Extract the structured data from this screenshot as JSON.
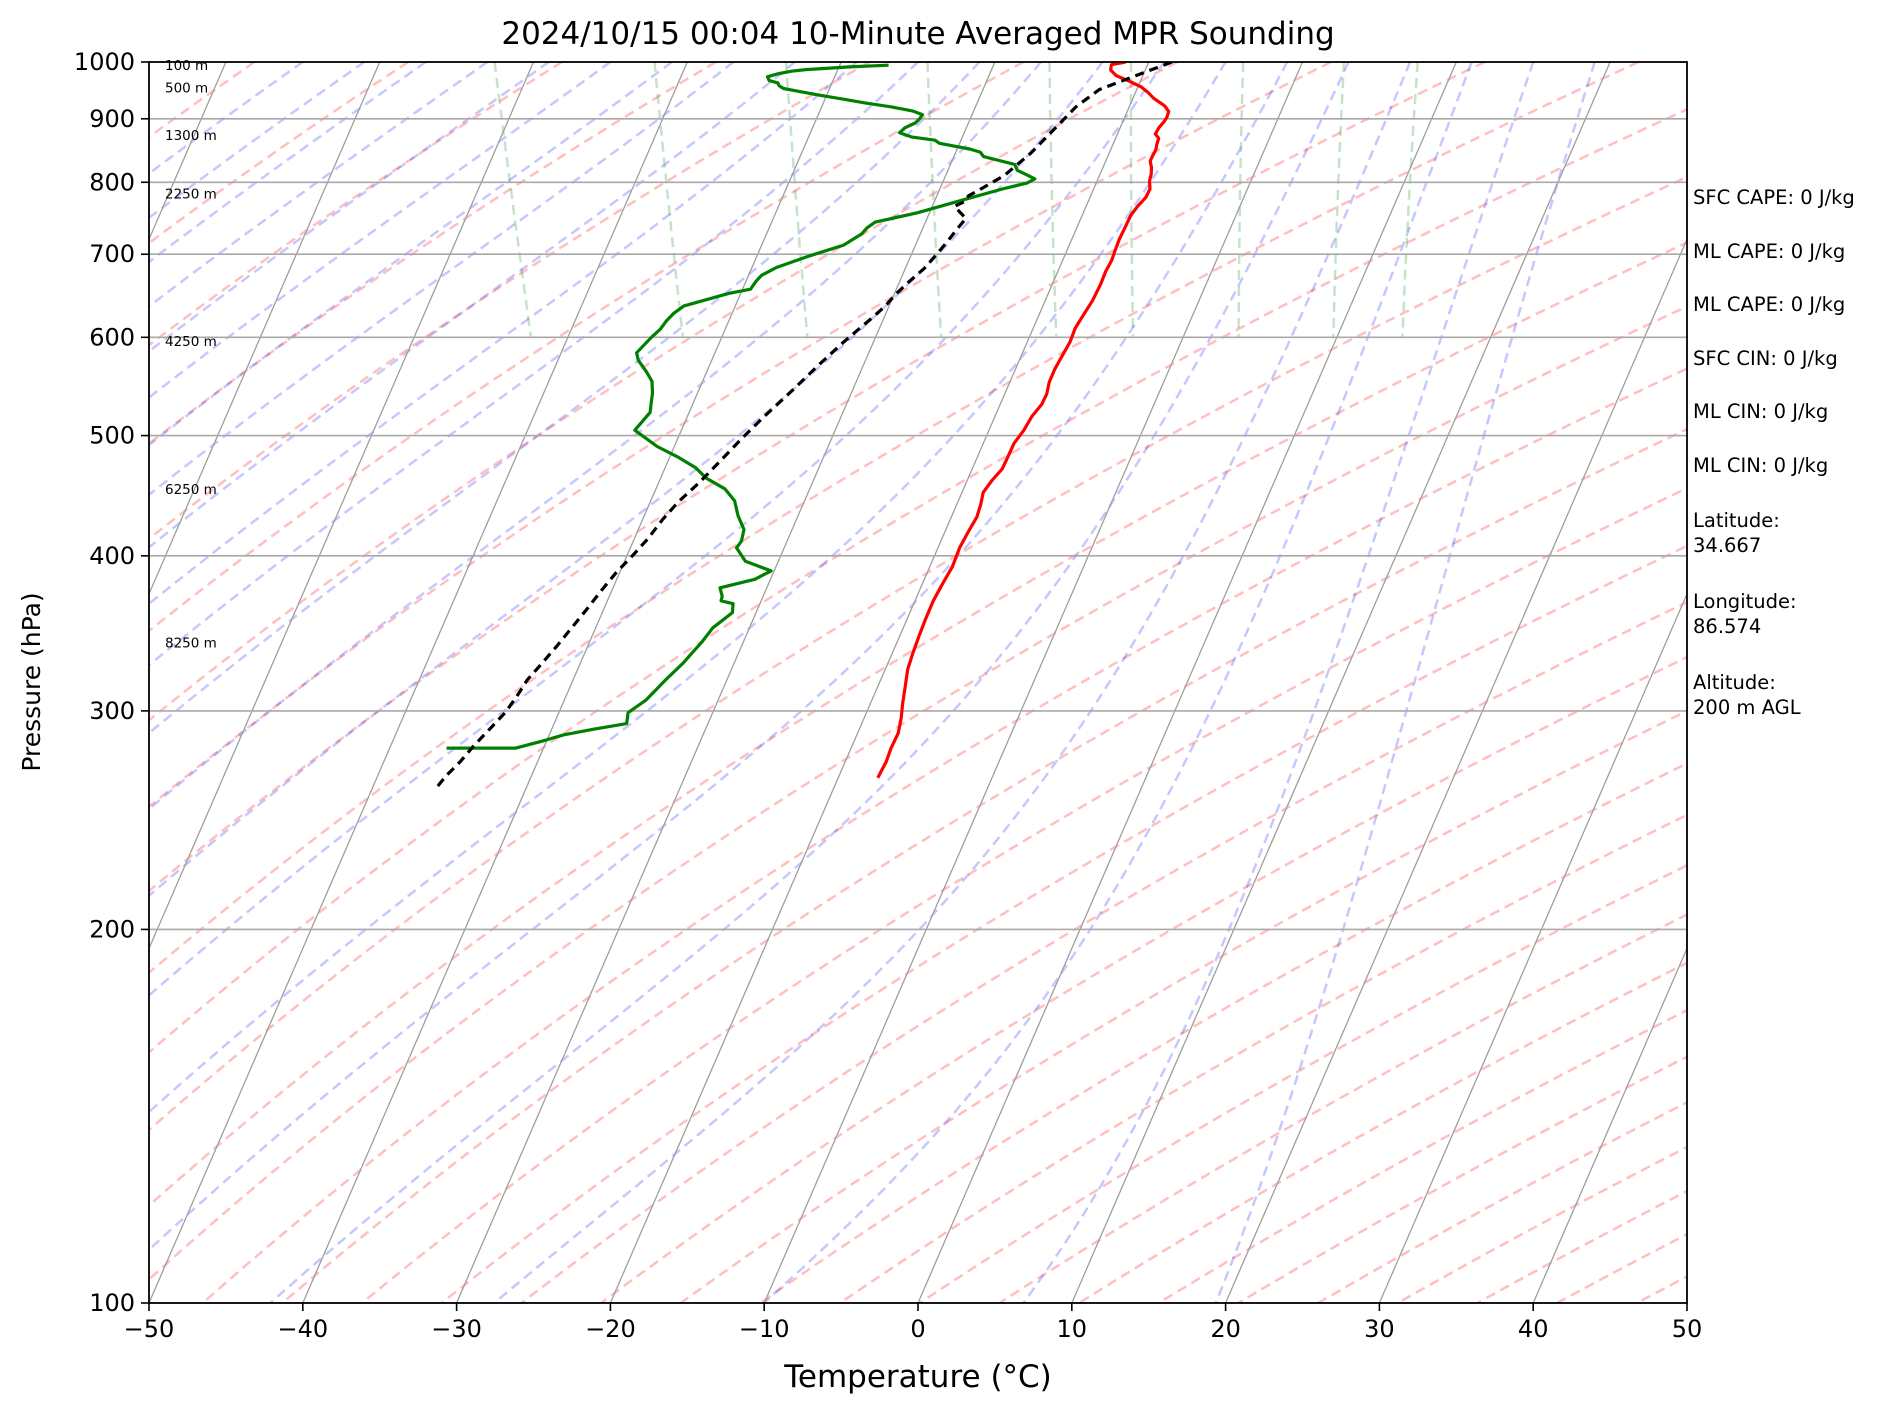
{
  "chart_data": {
    "type": "line",
    "title": "2024/10/15 00:04 10-Minute Averaged MPR Sounding",
    "xlabel": "Temperature (°C)",
    "ylabel": "Pressure (hPa)",
    "xlim": [
      -50,
      50
    ],
    "ylim": [
      1000,
      100
    ],
    "y_scale": "log",
    "x_ticks": [
      "−50",
      "−40",
      "−30",
      "−20",
      "−10",
      "0",
      "10",
      "20",
      "30",
      "40",
      "50"
    ],
    "y_ticks": [
      "100",
      "200",
      "300",
      "400",
      "500",
      "600",
      "700",
      "800",
      "900",
      "1000"
    ],
    "height_labels": [
      {
        "label": "8250 m",
        "p": 340
      },
      {
        "label": "6250 m",
        "p": 452
      },
      {
        "label": "4250 m",
        "p": 595
      },
      {
        "label": "2250 m",
        "p": 782
      },
      {
        "label": "1300 m",
        "p": 872
      },
      {
        "label": "500 m",
        "p": 952
      },
      {
        "label": "100 m",
        "p": 993
      }
    ],
    "series": [
      {
        "color": "#ff0000",
        "points": [
          [
            13.5,
            1000
          ],
          [
            12.5,
            995
          ],
          [
            12.3,
            985
          ],
          [
            12.5,
            975
          ],
          [
            13.2,
            965
          ],
          [
            13.8,
            955
          ],
          [
            14.1,
            945
          ],
          [
            14.3,
            935
          ],
          [
            14.8,
            922
          ],
          [
            14.9,
            912
          ],
          [
            14.6,
            902
          ],
          [
            14.3,
            895
          ],
          [
            13.8,
            885
          ],
          [
            13.4,
            875
          ],
          [
            13.5,
            868
          ],
          [
            13.2,
            858
          ],
          [
            13.0,
            850
          ],
          [
            12.6,
            840
          ],
          [
            12.3,
            832
          ],
          [
            12.2,
            822
          ],
          [
            12.0,
            812
          ],
          [
            11.7,
            802
          ],
          [
            11.5,
            790
          ],
          [
            11.0,
            778
          ],
          [
            10.2,
            765
          ],
          [
            9.5,
            752
          ],
          [
            8.9,
            738
          ],
          [
            8.1,
            720
          ],
          [
            7.5,
            705
          ],
          [
            7.0,
            692
          ],
          [
            6.3,
            678
          ],
          [
            5.6,
            662
          ],
          [
            4.6,
            642
          ],
          [
            3.6,
            625
          ],
          [
            2.7,
            610
          ],
          [
            2.0,
            595
          ],
          [
            1.1,
            580
          ],
          [
            0.2,
            565
          ],
          [
            -0.5,
            552
          ],
          [
            -1.0,
            540
          ],
          [
            -1.6,
            530
          ],
          [
            -2.6,
            518
          ],
          [
            -3.5,
            505
          ],
          [
            -4.5,
            493
          ],
          [
            -5.2,
            482
          ],
          [
            -6.0,
            470
          ],
          [
            -7.0,
            460
          ],
          [
            -7.9,
            450
          ],
          [
            -8.4,
            440
          ],
          [
            -9.0,
            430
          ],
          [
            -10.0,
            418
          ],
          [
            -11.0,
            406
          ],
          [
            -12.0,
            392
          ],
          [
            -13.1,
            380
          ],
          [
            -14.2,
            368
          ],
          [
            -15.2,
            356
          ],
          [
            -16.1,
            345
          ],
          [
            -17.0,
            334
          ],
          [
            -17.8,
            324
          ],
          [
            -18.5,
            313
          ],
          [
            -19.1,
            304
          ],
          [
            -19.6,
            296
          ],
          [
            -20.2,
            288
          ],
          [
            -21.1,
            280
          ],
          [
            -21.8,
            273
          ],
          [
            -22.8,
            265
          ]
        ]
      },
      {
        "color": "#008000",
        "points": [
          [
            -2.0,
            994
          ],
          [
            -4.6,
            991
          ],
          [
            -7.5,
            986
          ],
          [
            -8.5,
            983
          ],
          [
            -9.5,
            978
          ],
          [
            -10.2,
            973
          ],
          [
            -10.2,
            966
          ],
          [
            -9.7,
            962
          ],
          [
            -9.7,
            957
          ],
          [
            -9.5,
            952
          ],
          [
            -8.6,
            947
          ],
          [
            -7.3,
            940
          ],
          [
            -5.8,
            933
          ],
          [
            -4.6,
            927
          ],
          [
            -3.0,
            920
          ],
          [
            -1.7,
            913
          ],
          [
            -1.2,
            907
          ],
          [
            -1.5,
            900
          ],
          [
            -1.9,
            893
          ],
          [
            -2.7,
            885
          ],
          [
            -3.2,
            877
          ],
          [
            -2.5,
            870
          ],
          [
            -1.1,
            865
          ],
          [
            -0.9,
            860
          ],
          [
            0.9,
            851
          ],
          [
            1.5,
            846
          ],
          [
            1.6,
            839
          ],
          [
            2.5,
            833
          ],
          [
            3.4,
            827
          ],
          [
            3.4,
            818
          ],
          [
            3.9,
            811
          ],
          [
            4.3,
            805
          ],
          [
            3.7,
            799
          ],
          [
            1.9,
            790
          ],
          [
            -1.0,
            774
          ],
          [
            -4.3,
            756
          ],
          [
            -7.3,
            743
          ],
          [
            -8.0,
            735
          ],
          [
            -8.5,
            727
          ],
          [
            -10.0,
            712
          ],
          [
            -12.5,
            698
          ],
          [
            -15.0,
            683
          ],
          [
            -16.2,
            673
          ],
          [
            -16.7,
            666
          ],
          [
            -17.3,
            656
          ],
          [
            -18.8,
            651
          ],
          [
            -22.1,
            636
          ],
          [
            -23.0,
            627
          ],
          [
            -23.7,
            618
          ],
          [
            -24.3,
            609
          ],
          [
            -25.1,
            600
          ],
          [
            -26.5,
            583
          ],
          [
            -26.6,
            575
          ],
          [
            -26.4,
            563
          ],
          [
            -26.3,
            553
          ],
          [
            -26.6,
            541
          ],
          [
            -26.9,
            533
          ],
          [
            -27.3,
            522
          ],
          [
            -28.8,
            505
          ],
          [
            -27.8,
            490
          ],
          [
            -26.7,
            480
          ],
          [
            -25.9,
            471
          ],
          [
            -25.5,
            462
          ],
          [
            -24.6,
            453
          ],
          [
            -24.3,
            443
          ],
          [
            -24.5,
            431
          ],
          [
            -24.5,
            420
          ],
          [
            -25.0,
            411
          ],
          [
            -25.5,
            406
          ],
          [
            -25.3,
            396
          ],
          [
            -23.9,
            389
          ],
          [
            -25.2,
            383
          ],
          [
            -27.7,
            377
          ],
          [
            -27.8,
            371
          ],
          [
            -28.0,
            368
          ],
          [
            -27.3,
            366
          ],
          [
            -27.6,
            360
          ],
          [
            -29.3,
            350
          ],
          [
            -30.4,
            341
          ],
          [
            -31.5,
            333
          ],
          [
            -32.2,
            328
          ],
          [
            -33.8,
            318
          ],
          [
            -35.7,
            306
          ],
          [
            -37.2,
            299
          ],
          [
            -37.6,
            293
          ],
          [
            -39.9,
            290
          ],
          [
            -42.0,
            287
          ],
          [
            -43.4,
            284
          ],
          [
            -45.5,
            280
          ],
          [
            -50.0,
            280
          ]
        ]
      },
      {
        "color": "#000000",
        "dashed": true,
        "points": [
          [
            16.5,
            1000
          ],
          [
            11.0,
            950
          ],
          [
            9.0,
            920
          ],
          [
            6.8,
            880
          ],
          [
            4.8,
            845
          ],
          [
            2.4,
            810
          ],
          [
            0.5,
            790
          ],
          [
            -0.5,
            780
          ],
          [
            -0.9,
            772
          ],
          [
            -1.7,
            765
          ],
          [
            -1.3,
            748
          ],
          [
            -2.2,
            733
          ],
          [
            -3.2,
            716
          ],
          [
            -4.2,
            700
          ],
          [
            -5.4,
            682
          ],
          [
            -6.8,
            665
          ],
          [
            -8.0,
            650
          ],
          [
            -9.0,
            636
          ],
          [
            -10.2,
            622
          ],
          [
            -11.5,
            608
          ],
          [
            -12.8,
            594
          ],
          [
            -15.0,
            570
          ],
          [
            -17.5,
            543
          ],
          [
            -20.0,
            518
          ],
          [
            -22.0,
            498
          ],
          [
            -24.0,
            478
          ],
          [
            -26.0,
            459
          ],
          [
            -28.0,
            442
          ],
          [
            -29.5,
            428
          ],
          [
            -31.0,
            413
          ],
          [
            -32.5,
            400
          ],
          [
            -34.0,
            388
          ],
          [
            -35.5,
            375
          ],
          [
            -37.0,
            362
          ],
          [
            -38.6,
            349
          ],
          [
            -40.0,
            338
          ],
          [
            -41.5,
            327
          ],
          [
            -42.8,
            318
          ],
          [
            -44.0,
            308
          ],
          [
            -45.2,
            299
          ],
          [
            -46.5,
            291
          ],
          [
            -48.2,
            281
          ],
          [
            -49.5,
            273
          ],
          [
            -50.8,
            266
          ],
          [
            -51.8,
            260
          ]
        ]
      }
    ]
  },
  "stats": {
    "sfc_cape": "SFC CAPE: 0 J/kg",
    "ml_cape_1": "ML CAPE: 0 J/kg",
    "ml_cape_2": "ML CAPE: 0 J/kg",
    "sfc_cin": "SFC CIN: 0 J/kg",
    "ml_cin_1": "ML CIN: 0 J/kg",
    "ml_cin_2": "ML CIN: 0 J/kg",
    "latitude_label": "Latitude:",
    "latitude_value": "34.667",
    "longitude_label": "Longitude:",
    "longitude_value": "86.574",
    "altitude_label": "Altitude:",
    "altitude_value": "200 m AGL"
  }
}
